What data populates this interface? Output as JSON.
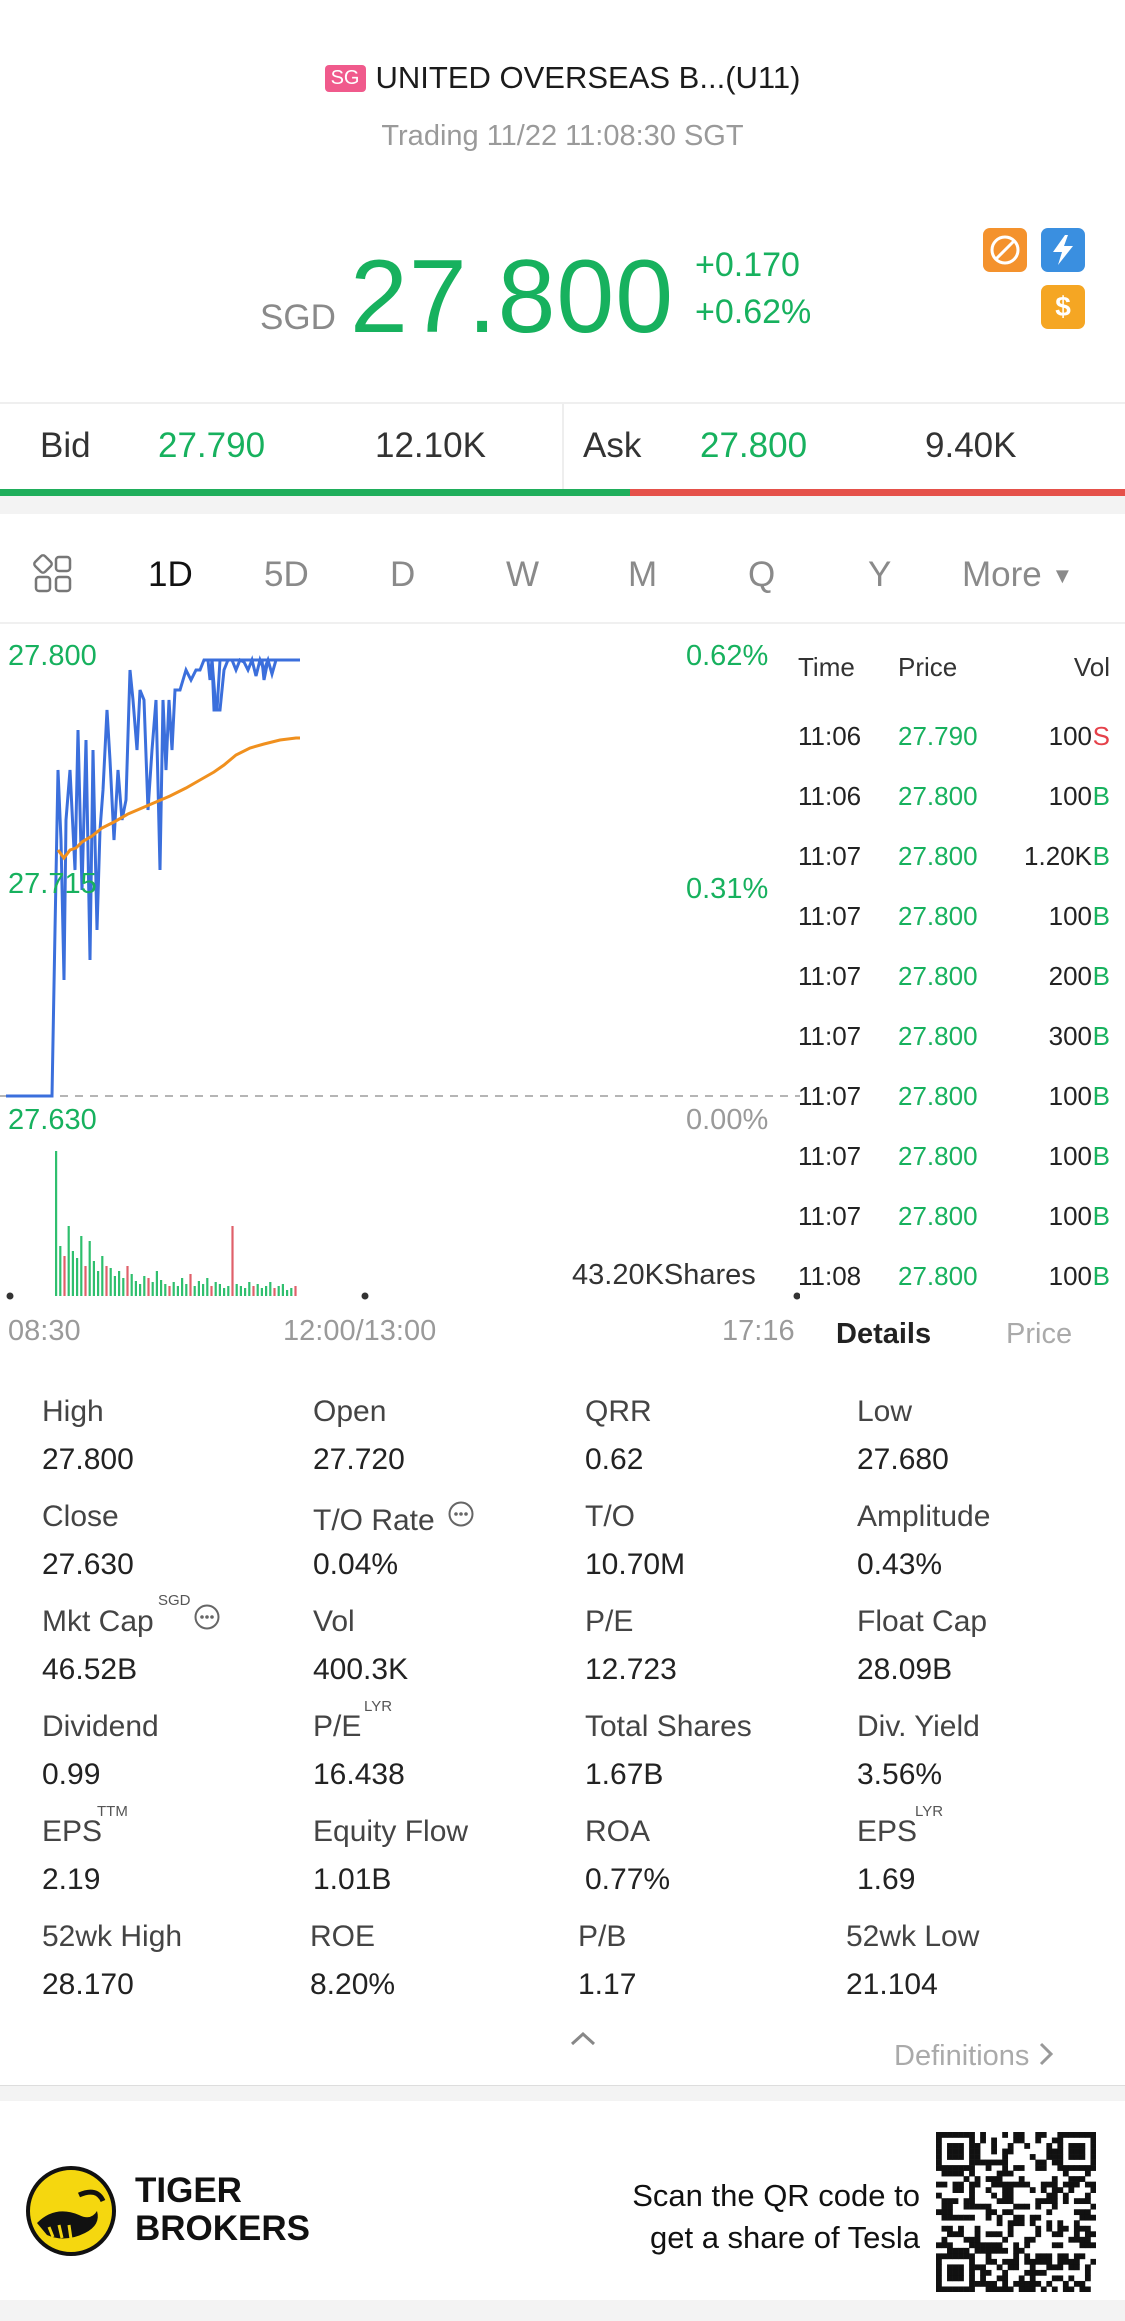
{
  "header": {
    "market_badge": "SG",
    "title": "UNITED OVERSEAS B...(U11)",
    "status": "Trading 11/22 11:08:30 SGT"
  },
  "price": {
    "currency": "SGD",
    "last": "27.800",
    "change_abs": "+0.170",
    "change_pct": "+0.62%"
  },
  "icons": [
    "no-short-icon",
    "lightning-icon",
    "dollar-icon"
  ],
  "bidask": {
    "bid_label": "Bid",
    "bid_price": "27.790",
    "bid_size": "12.10K",
    "ask_label": "Ask",
    "ask_price": "27.800",
    "ask_size": "9.40K",
    "bid_share": 0.56
  },
  "tabs": [
    "1D",
    "5D",
    "D",
    "W",
    "M",
    "Q",
    "Y",
    "More"
  ],
  "active_tab": "1D",
  "chart": {
    "y_top": "27.800",
    "y_mid": "27.715",
    "y_bottom": "27.630",
    "pct_top": "0.62%",
    "pct_mid": "0.31%",
    "pct_bottom": "0.00%",
    "volume_label": "43.20KShares",
    "x_start": "08:30",
    "x_mid": "12:00/13:00",
    "x_end": "17:16"
  },
  "ticks": {
    "headers": [
      "Time",
      "Price",
      "Vol"
    ],
    "rows": [
      {
        "time": "11:06",
        "price": "27.790",
        "vol": "100",
        "side": "S"
      },
      {
        "time": "11:06",
        "price": "27.800",
        "vol": "100",
        "side": "B"
      },
      {
        "time": "11:07",
        "price": "27.800",
        "vol": "1.20K",
        "side": "B"
      },
      {
        "time": "11:07",
        "price": "27.800",
        "vol": "100",
        "side": "B"
      },
      {
        "time": "11:07",
        "price": "27.800",
        "vol": "200",
        "side": "B"
      },
      {
        "time": "11:07",
        "price": "27.800",
        "vol": "300",
        "side": "B"
      },
      {
        "time": "11:07",
        "price": "27.800",
        "vol": "100",
        "side": "B"
      },
      {
        "time": "11:07",
        "price": "27.800",
        "vol": "100",
        "side": "B"
      },
      {
        "time": "11:07",
        "price": "27.800",
        "vol": "100",
        "side": "B"
      },
      {
        "time": "11:08",
        "price": "27.800",
        "vol": "100",
        "side": "B"
      }
    ],
    "detail_tab": "Details",
    "price_tab": "Price"
  },
  "stats": {
    "high_label": "High",
    "high": "27.800",
    "open_label": "Open",
    "open": "27.720",
    "qrr_label": "QRR",
    "qrr": "0.62",
    "low_label": "Low",
    "low": "27.680",
    "close_label": "Close",
    "close": "27.630",
    "to_rate_label": "T/O Rate",
    "to_rate": "0.04%",
    "to_label": "T/O",
    "to": "10.70M",
    "amplitude_label": "Amplitude",
    "amplitude": "0.43%",
    "mktcap_label": "Mkt Cap",
    "mktcap_sup": "SGD",
    "mktcap": "46.52B",
    "vol_label": "Vol",
    "vol": "400.3K",
    "pe_label": "P/E",
    "pe": "12.723",
    "floatcap_label": "Float Cap",
    "floatcap": "28.09B",
    "dividend_label": "Dividend",
    "dividend": "0.99",
    "pe_lyr_label": "P/E",
    "pe_lyr_sup": "LYR",
    "pe_lyr": "16.438",
    "total_shares_label": "Total Shares",
    "total_shares": "1.67B",
    "div_yield_label": "Div. Yield",
    "div_yield": "3.56%",
    "eps_ttm_label": "EPS",
    "eps_ttm_sup": "TTM",
    "eps_ttm": "2.19",
    "equity_flow_label": "Equity Flow",
    "equity_flow": "1.01B",
    "roa_label": "ROA",
    "roa": "0.77%",
    "eps_lyr_label": "EPS",
    "eps_lyr_sup": "LYR",
    "eps_lyr": "1.69",
    "wk52_high_label": "52wk High",
    "wk52_high": "28.170",
    "roe_label": "ROE",
    "roe": "8.20%",
    "pb_label": "P/B",
    "pb": "1.17",
    "wk52_low_label": "52wk Low",
    "wk52_low": "21.104",
    "definitions_label": "Definitions"
  },
  "footer": {
    "brand_line1": "TIGER",
    "brand_line2": "BROKERS",
    "promo_line1": "Scan the QR code to",
    "promo_line2": "get a share of Tesla"
  },
  "colors": {
    "up": "#17b15e",
    "down": "#e5414a",
    "line": "#3b6fdc",
    "avg": "#f0901e",
    "logo": "#f5d70f"
  }
}
